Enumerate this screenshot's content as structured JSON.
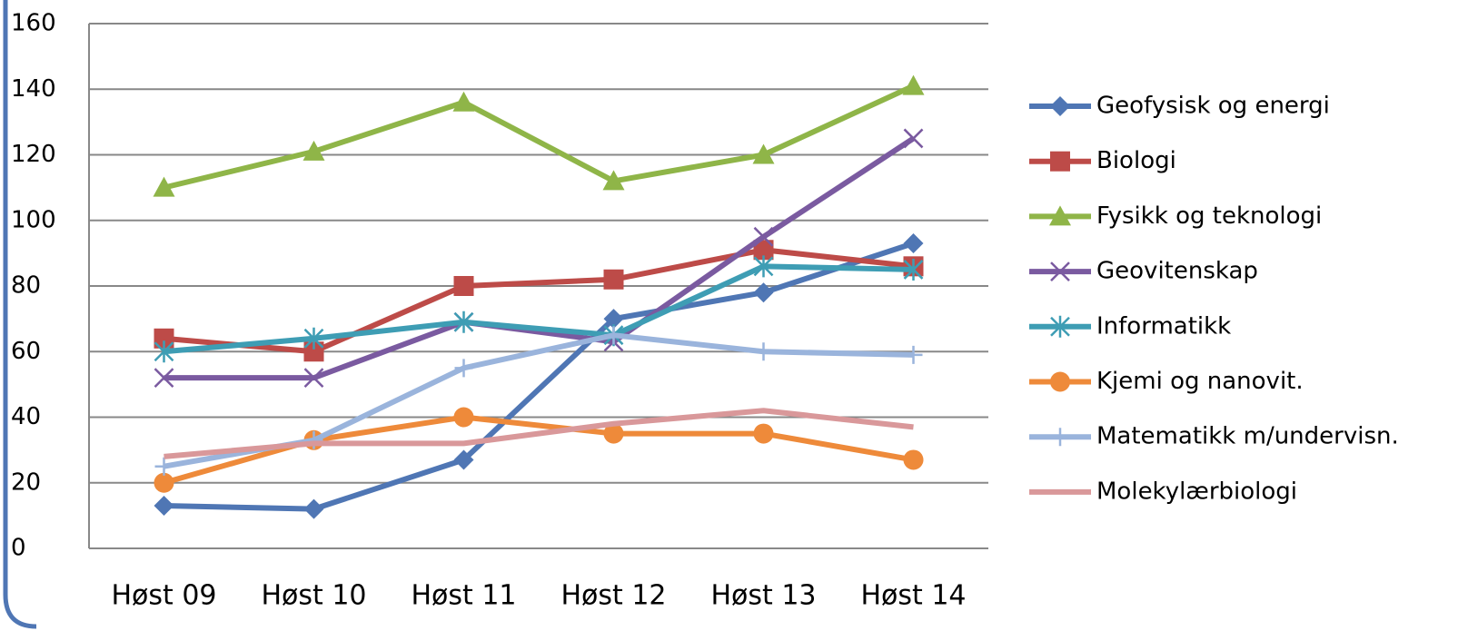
{
  "chart_data": {
    "type": "line",
    "categories": [
      "Høst 09",
      "Høst 10",
      "Høst 11",
      "Høst 12",
      "Høst 13",
      "Høst 14"
    ],
    "series": [
      {
        "name": "Geofysisk og energi",
        "color": "#4f76b4",
        "marker": "diamond",
        "values": [
          13,
          12,
          27,
          70,
          78,
          93
        ]
      },
      {
        "name": "Biologi",
        "color": "#bd4b48",
        "marker": "square",
        "values": [
          64,
          60,
          80,
          82,
          91,
          86
        ]
      },
      {
        "name": "Fysikk og teknologi",
        "color": "#8fb548",
        "marker": "triangle",
        "values": [
          110,
          121,
          136,
          112,
          120,
          141
        ]
      },
      {
        "name": "Geovitenskap",
        "color": "#7a5aa0",
        "marker": "x",
        "values": [
          52,
          52,
          69,
          63,
          95,
          125
        ]
      },
      {
        "name": "Informatikk",
        "color": "#3e9db4",
        "marker": "star",
        "values": [
          60,
          64,
          69,
          65,
          86,
          85
        ]
      },
      {
        "name": "Kjemi og  nanovit.",
        "color": "#ee8a3a",
        "marker": "circle",
        "values": [
          20,
          33,
          40,
          35,
          35,
          27
        ]
      },
      {
        "name": "Matematikk m/undervisn.",
        "color": "#9ab4dc",
        "marker": "plus",
        "values": [
          25,
          33,
          55,
          65,
          60,
          59
        ]
      },
      {
        "name": "Molekylærbiologi",
        "color": "#d9989a",
        "marker": "none",
        "values": [
          28,
          32,
          32,
          38,
          42,
          37
        ]
      }
    ],
    "ylim": [
      0,
      160
    ],
    "yticks": [
      0,
      20,
      40,
      60,
      80,
      100,
      120,
      140,
      160
    ],
    "grid": true,
    "legend": "right"
  }
}
